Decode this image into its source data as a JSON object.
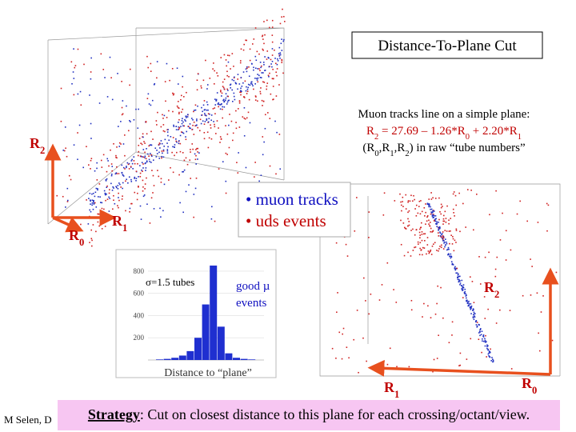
{
  "title": "Distance-To-Plane Cut",
  "plane_note": {
    "line1": "Muon tracks line on a simple plane:",
    "equation": [
      "R",
      "2",
      " = 27.69 – 1.26*R",
      "0",
      " + 2.20*R",
      "1"
    ],
    "units": [
      "(R",
      "0",
      ",R",
      "1",
      ",R",
      "2",
      ") in raw “tube numbers”"
    ]
  },
  "left_plot": {
    "r2": [
      "R",
      "2"
    ],
    "r1": [
      "R",
      "1"
    ],
    "r0": [
      "R",
      "0"
    ],
    "legend": [
      "• muon tracks",
      "• uds events"
    ]
  },
  "histogram": {
    "type": "bar",
    "annotation": "σ=1.5 tubes",
    "good_events": [
      "good µ",
      "events"
    ],
    "x_label": "Distance to “plane”",
    "color": "#1f2fd0",
    "values": [
      5,
      10,
      20,
      40,
      80,
      200,
      500,
      850,
      300,
      60,
      20,
      10,
      5
    ],
    "ylim": [
      0,
      900
    ],
    "yticks": [
      200,
      400,
      600,
      800
    ]
  },
  "right_plot": {
    "r2": [
      "R",
      "2"
    ],
    "r1": [
      "R",
      "1"
    ],
    "r0": [
      "R",
      "0"
    ]
  },
  "footer": {
    "author": "M Selen, D",
    "strategy": [
      "Strategy",
      ": Cut on closest distance to this plane for each crossing/octant/view."
    ]
  }
}
